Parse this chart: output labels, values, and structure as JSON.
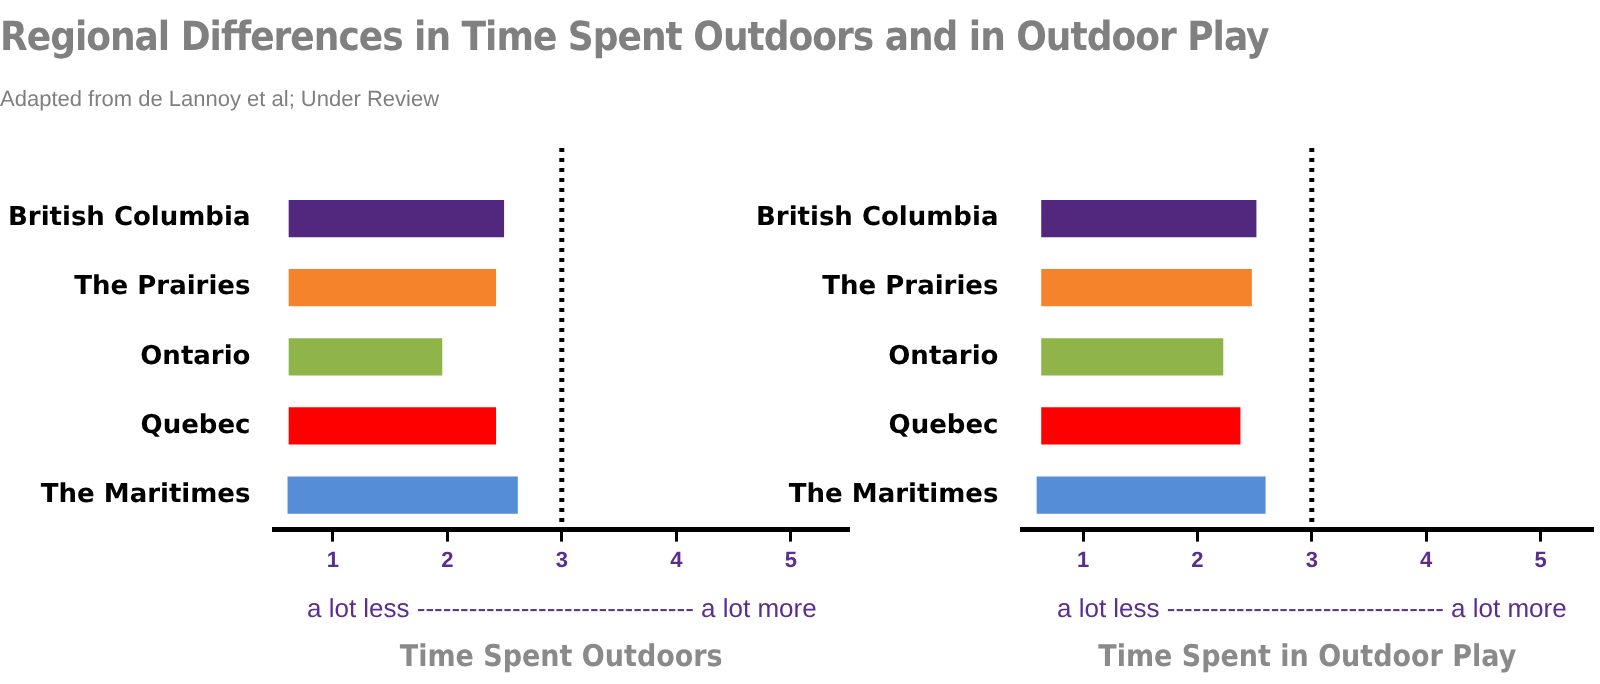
{
  "chart_data": [
    {
      "type": "bar",
      "title": "Regional Differences in Time Spent Outdoors and in Outdoor Play",
      "subtitle": "Adapted from de Lannoy et al; Under Review",
      "orientation": "horizontal",
      "categories": [
        "British Columbia",
        "The Prairies",
        "Ontario",
        "Quebec",
        "The Maritimes"
      ],
      "base": [
        0.62,
        0.62,
        0.62,
        0.62,
        0.61
      ],
      "values": [
        1.87,
        1.8,
        1.33,
        1.8,
        2.0
      ],
      "colors": [
        "#51287d",
        "#f5832c",
        "#8fb54a",
        "#ff0000",
        "#558ed6"
      ],
      "xlim": [
        0.49,
        5.5
      ],
      "xticks": [
        1,
        2,
        3,
        4,
        5
      ],
      "xlabel": "Time Spent Outdoors",
      "annotations": [
        "a lot less -------------------------------- a lot more"
      ],
      "ref_lines": [
        {
          "axis": "x",
          "value": 3,
          "line_style": "dotted",
          "color": "#000000"
        }
      ],
      "grid": false,
      "legend": false
    },
    {
      "type": "bar",
      "orientation": "horizontal",
      "categories": [
        "British Columbia",
        "The Prairies",
        "Ontario",
        "Quebec",
        "The Maritimes"
      ],
      "base": [
        0.64,
        0.64,
        0.64,
        0.64,
        0.6
      ],
      "values": [
        1.87,
        1.83,
        1.58,
        1.73,
        1.99
      ],
      "colors": [
        "#51287d",
        "#f5832c",
        "#8fb54a",
        "#ff0000",
        "#558ed6"
      ],
      "xlim": [
        0.47,
        5.45
      ],
      "xticks": [
        1,
        2,
        3,
        4,
        5
      ],
      "xlabel": "Time Spent in Outdoor Play",
      "annotations": [
        "a lot less -------------------------------- a lot more"
      ],
      "ref_lines": [
        {
          "axis": "x",
          "value": 3,
          "line_style": "dotted",
          "color": "#000000"
        }
      ],
      "grid": false,
      "legend": false
    }
  ]
}
